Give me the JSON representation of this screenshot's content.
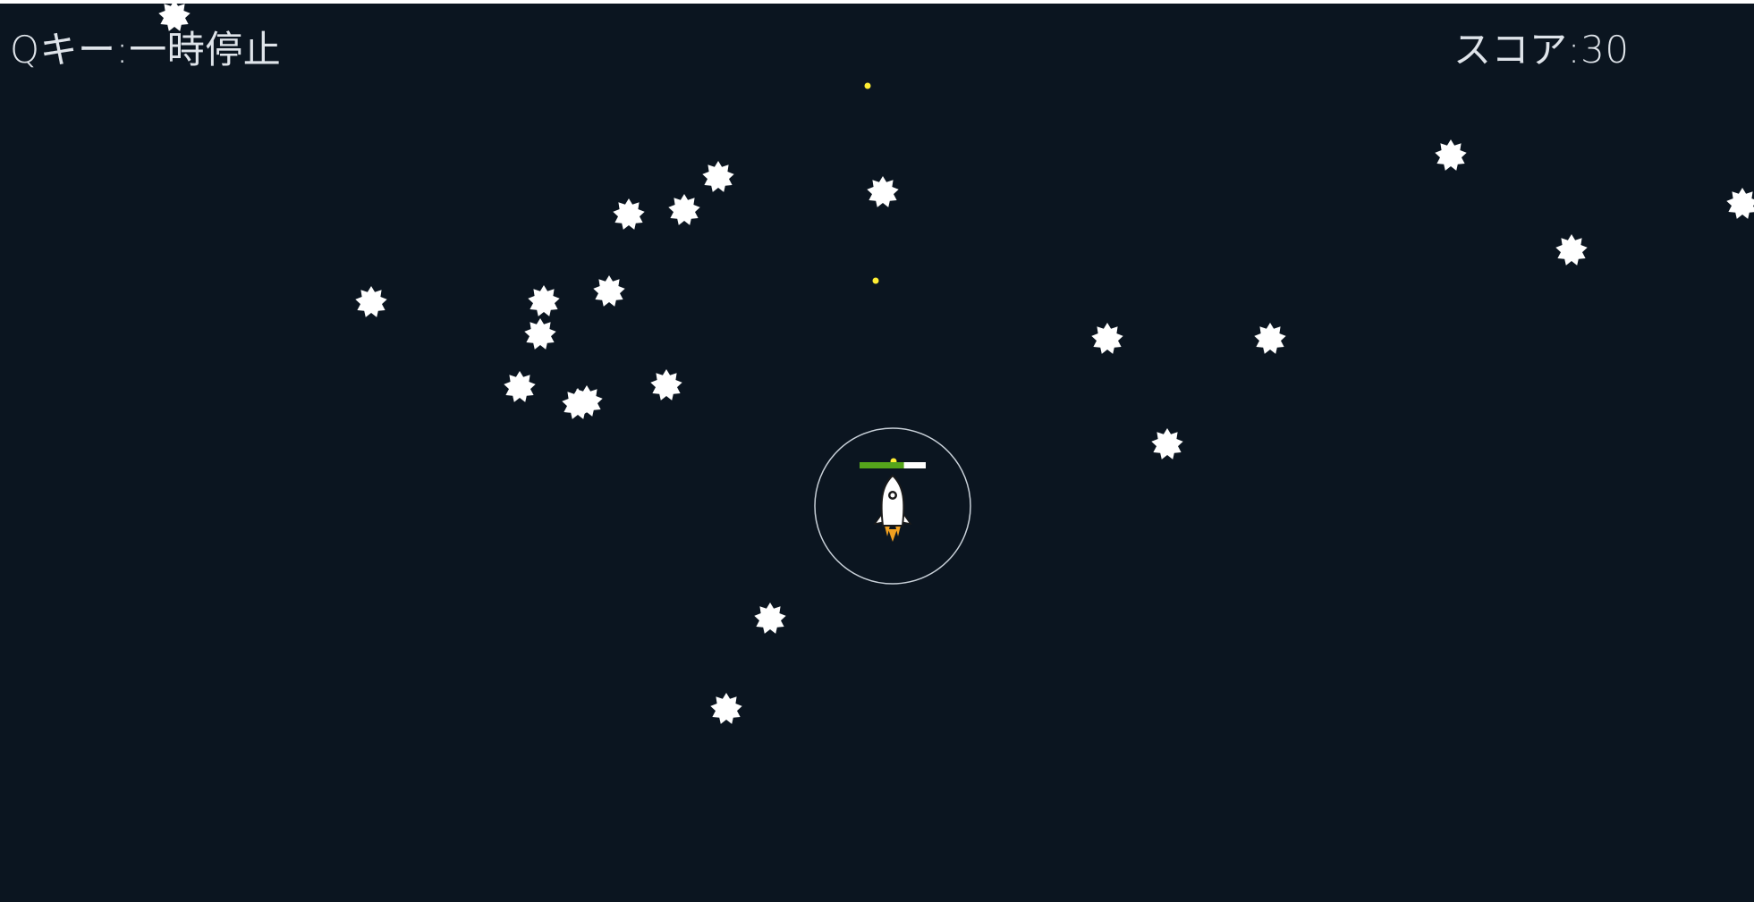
{
  "hud": {
    "pause_hint": "Qキー:一時停止",
    "score_label": "スコア:30"
  },
  "player": {
    "health_fraction": 0.67
  },
  "colors": {
    "background": "#0b1520",
    "enemy": "#ffffff",
    "bullet": "#ffee33",
    "health_fill": "#55a51b",
    "health_empty": "#ffffff",
    "shield_ring": "#c9d1d9",
    "flame": "#f0a020"
  },
  "icons": {
    "player": "rocket-icon",
    "enemy": "spiky-star-icon",
    "bullet": "dot-icon"
  }
}
